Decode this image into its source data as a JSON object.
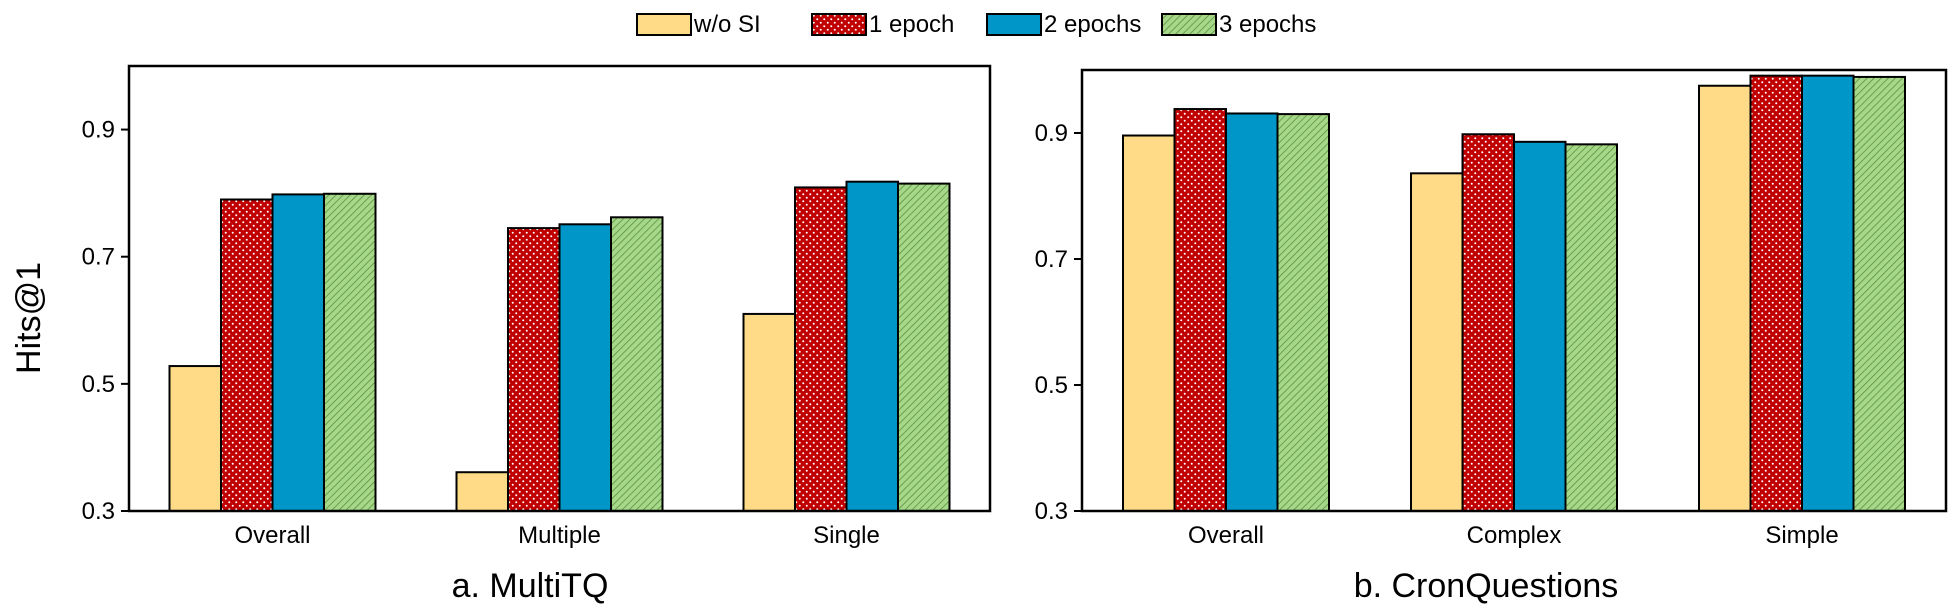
{
  "legend": [
    {
      "label": "w/o SI",
      "color": "#FFDB87",
      "pattern": "solid"
    },
    {
      "label": "1 epoch",
      "color": "#C00000",
      "pattern": "dots"
    },
    {
      "label": "2 epochs",
      "color": "#0096C8",
      "pattern": "solid"
    },
    {
      "label": "3 epochs",
      "color": "#A6D88A",
      "pattern": "hatch"
    }
  ],
  "ylabel": "Hits@1",
  "chart_data": [
    {
      "type": "bar",
      "title": "a. MultiTQ",
      "ylabel": "Hits@1",
      "ylim": [
        0.3,
        1.0
      ],
      "yticks": [
        0.3,
        0.5,
        0.7,
        0.9
      ],
      "categories": [
        "Overall",
        "Multiple",
        "Single"
      ],
      "series": [
        {
          "name": "w/o SI",
          "values": [
            0.528,
            0.361,
            0.61
          ]
        },
        {
          "name": "1 epoch",
          "values": [
            0.79,
            0.745,
            0.809
          ]
        },
        {
          "name": "2 epochs",
          "values": [
            0.798,
            0.751,
            0.818
          ]
        },
        {
          "name": "3 epochs",
          "values": [
            0.799,
            0.762,
            0.815
          ]
        }
      ]
    },
    {
      "type": "bar",
      "title": "b. CronQuestions",
      "ylabel": "",
      "ylim": [
        0.3,
        1.0
      ],
      "yticks": [
        0.3,
        0.5,
        0.7,
        0.9
      ],
      "categories": [
        "Overall",
        "Complex",
        "Simple"
      ],
      "series": [
        {
          "name": "w/o SI",
          "values": [
            0.896,
            0.836,
            0.975
          ]
        },
        {
          "name": "1 epoch",
          "values": [
            0.938,
            0.898,
            0.991
          ]
        },
        {
          "name": "2 epochs",
          "values": [
            0.931,
            0.886,
            0.991
          ]
        },
        {
          "name": "3 epochs",
          "values": [
            0.93,
            0.882,
            0.989
          ]
        }
      ]
    }
  ]
}
